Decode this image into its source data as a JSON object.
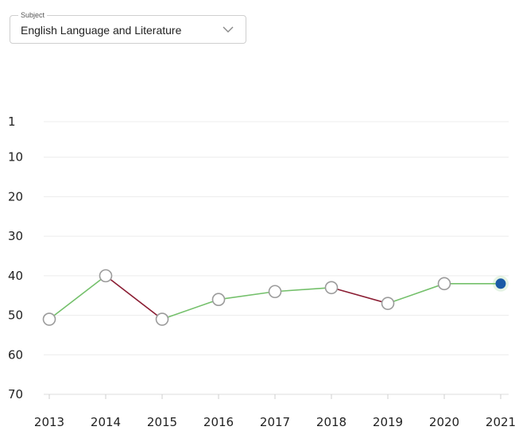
{
  "subject_select": {
    "legend": "Subject",
    "value": "English Language and Literature",
    "icon": "chevron-down-icon"
  },
  "colors": {
    "rise": "#74c06b",
    "fall": "#8a1c32",
    "current_point": "#1a5aa6",
    "point_fill": "#ffffff",
    "point_stroke": "#9b9b9b",
    "grid": "#ececec"
  },
  "chart_data": {
    "type": "line",
    "title": "",
    "xlabel": "",
    "ylabel": "",
    "x": [
      "2013",
      "2014",
      "2015",
      "2016",
      "2017",
      "2018",
      "2019",
      "2020",
      "2021"
    ],
    "y": [
      51,
      40,
      51,
      46,
      44,
      43,
      47,
      42,
      42
    ],
    "y_ticks": [
      "1",
      "10",
      "20",
      "30",
      "40",
      "50",
      "60",
      "70"
    ],
    "y_tick_values": [
      1,
      10,
      20,
      30,
      40,
      50,
      60,
      70
    ],
    "ylim": [
      1,
      70
    ],
    "y_inverted": true,
    "grid": true,
    "legend": "none",
    "segment_colors": "green where value decreases (rank improves), dark red where value increases",
    "highlighted_point": "2021"
  }
}
